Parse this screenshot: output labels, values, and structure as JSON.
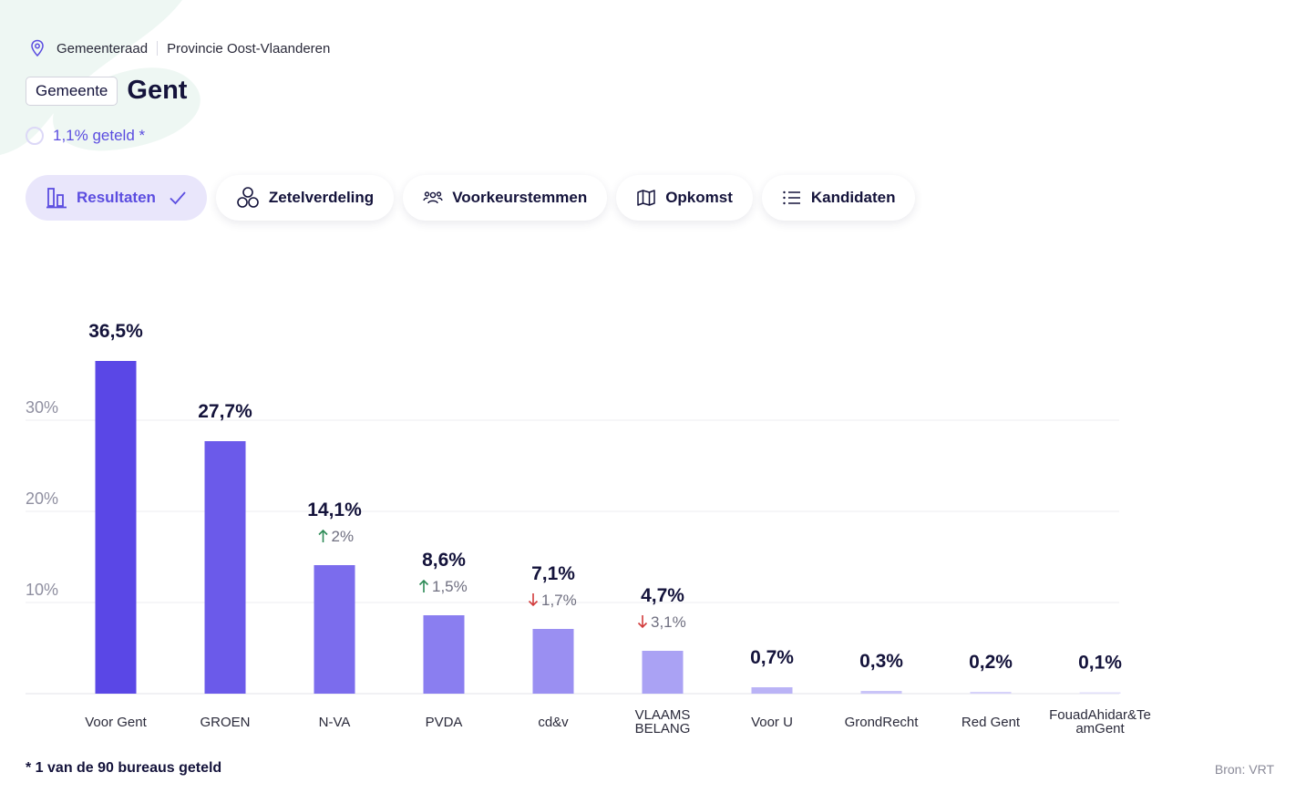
{
  "breadcrumb": {
    "level": "Gemeenteraad",
    "province": "Provincie Oost-Vlaanderen"
  },
  "header": {
    "badge": "Gemeente",
    "title": "Gent"
  },
  "progress": {
    "label": "1,1% geteld *",
    "fraction": 0.011
  },
  "tabs": [
    {
      "label": "Resultaten",
      "icon": "bar-chart-icon",
      "active": true
    },
    {
      "label": "Zetelverdeling",
      "icon": "seats-icon",
      "active": false
    },
    {
      "label": "Voorkeurstemmen",
      "icon": "people-icon",
      "active": false
    },
    {
      "label": "Opkomst",
      "icon": "map-icon",
      "active": false
    },
    {
      "label": "Kandidaten",
      "icon": "list-icon",
      "active": false
    }
  ],
  "colors": {
    "accent": "#5b4de0",
    "up": "#2e8b57",
    "down": "#d23b3b"
  },
  "chart_data": {
    "type": "bar",
    "title": "",
    "xlabel": "",
    "ylabel": "",
    "ylim": [
      0,
      40
    ],
    "yticks": [
      10,
      20,
      30
    ],
    "ytick_labels": [
      "10%",
      "20%",
      "30%"
    ],
    "grid": true,
    "categories": [
      "Voor Gent",
      "GROEN",
      "N-VA",
      "PVDA",
      "cd&v",
      "VLAAMS BELANG",
      "Voor U",
      "GrondRecht",
      "Red Gent",
      "FouadAhidar&TeamGent"
    ],
    "category_lines": [
      [
        "Voor Gent"
      ],
      [
        "GROEN"
      ],
      [
        "N-VA"
      ],
      [
        "PVDA"
      ],
      [
        "cd&v"
      ],
      [
        "VLAAMS",
        "BELANG"
      ],
      [
        "Voor U"
      ],
      [
        "GrondRecht"
      ],
      [
        "Red Gent"
      ],
      [
        "FouadAhidar&Te",
        "amGent"
      ]
    ],
    "values": [
      36.5,
      27.7,
      14.1,
      8.6,
      7.1,
      4.7,
      0.7,
      0.3,
      0.2,
      0.1
    ],
    "value_labels": [
      "36,5%",
      "27,7%",
      "14,1%",
      "8,6%",
      "7,1%",
      "4,7%",
      "0,7%",
      "0,3%",
      "0,2%",
      "0,1%"
    ],
    "changes": [
      null,
      null,
      "up",
      "up",
      "down",
      "down",
      null,
      null,
      null,
      null
    ],
    "change_labels": [
      null,
      null,
      "2%",
      "1,5%",
      "1,7%",
      "3,1%",
      null,
      null,
      null,
      null
    ],
    "bar_colors": [
      "#5a47e6",
      "#6b5aea",
      "#7b6ced",
      "#8a7ef0",
      "#9a8ff2",
      "#aaa2f4",
      "#bab3f6",
      "#c9c4f8",
      "#d6d2fa",
      "#e2dffb"
    ]
  },
  "footer": {
    "note": "* 1 van de 90 bureaus geteld",
    "source": "Bron: VRT"
  }
}
